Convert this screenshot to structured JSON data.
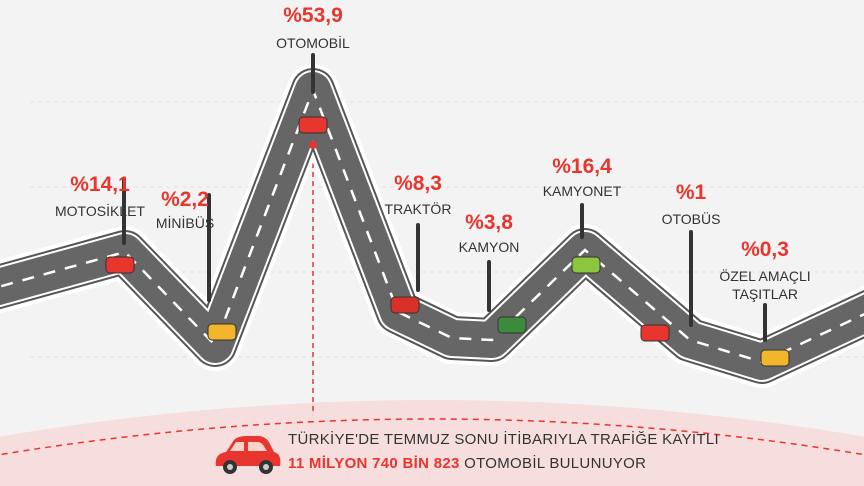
{
  "chart_data": {
    "type": "road",
    "categories": [
      "MOTOSİKLET",
      "MİNİBÜS",
      "OTOMOBİL",
      "TRAKTÖR",
      "KAMYON",
      "KAMYONET",
      "OTOBÜS",
      "ÖZEL AMAÇLI TAŞITLAR"
    ],
    "values": [
      14.1,
      2.2,
      53.9,
      8.3,
      3.8,
      16.4,
      1,
      0.3
    ],
    "value_labels": [
      "%14,1",
      "%2,2",
      "%53,9",
      "%8,3",
      "%3,8",
      "%16,4",
      "%1",
      "%0,3"
    ],
    "value_color": "#e8352e",
    "footer": {
      "line1": "TÜRKİYE'DE TEMMUZ SONU İTİBARIYLA TRAFİĞE KAYITLI",
      "line2_bold": "11 MİLYON 740 BİN 823",
      "line2_rest": "OTOMOBİL BULUNUYOR"
    }
  }
}
